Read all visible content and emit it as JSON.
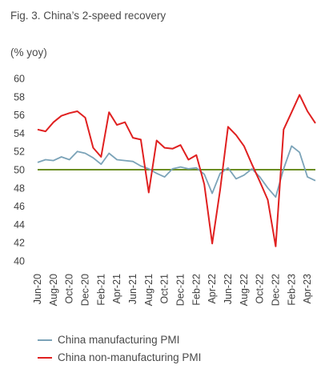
{
  "chart_data": {
    "type": "line",
    "title": "Fig. 3. China’s 2-speed recovery",
    "ylabel": "(% yoy)",
    "xlabel": "",
    "ylim": [
      40,
      60
    ],
    "yticks": [
      "40",
      "42",
      "44",
      "46",
      "48",
      "50",
      "52",
      "54",
      "56",
      "58",
      "60"
    ],
    "grid": false,
    "legend_position": "bottom-left",
    "reference_line": {
      "value": 50,
      "color": "#6b8e23"
    },
    "x": [
      "Jun-20",
      "Jul-20",
      "Aug-20",
      "Sep-20",
      "Oct-20",
      "Nov-20",
      "Dec-20",
      "Jan-21",
      "Feb-21",
      "Mar-21",
      "Apr-21",
      "May-21",
      "Jun-21",
      "Jul-21",
      "Aug-21",
      "Sep-21",
      "Oct-21",
      "Nov-21",
      "Dec-21",
      "Jan-22",
      "Feb-22",
      "Mar-22",
      "Apr-22",
      "May-22",
      "Jun-22",
      "Jul-22",
      "Aug-22",
      "Sep-22",
      "Oct-22",
      "Nov-22",
      "Dec-22",
      "Jan-23",
      "Feb-23",
      "Mar-23",
      "Apr-23",
      "May-23"
    ],
    "x_tick_labels": [
      "Jun-20",
      "Aug-20",
      "Oct-20",
      "Dec-20",
      "Feb-21",
      "Apr-21",
      "Jun-21",
      "Aug-21",
      "Oct-21",
      "Dec-21",
      "Feb-22",
      "Apr-22",
      "Jun-22",
      "Aug-22",
      "Oct-22",
      "Dec-22",
      "Feb-23",
      "Apr-23"
    ],
    "series": [
      {
        "name": "China manufacturing PMI",
        "color": "#7ba3b8",
        "values": [
          50.8,
          51.1,
          51.0,
          51.4,
          51.1,
          52.0,
          51.8,
          51.3,
          50.6,
          51.8,
          51.1,
          51.0,
          50.9,
          50.4,
          50.1,
          49.6,
          49.2,
          50.1,
          50.3,
          50.1,
          50.2,
          49.5,
          47.4,
          49.6,
          50.2,
          49.0,
          49.4,
          50.1,
          49.2,
          48.0,
          47.0,
          50.1,
          52.6,
          51.9,
          49.2,
          48.8
        ]
      },
      {
        "name": "China non-manufacturing PMI",
        "color": "#e02020",
        "values": [
          54.4,
          54.2,
          55.2,
          55.9,
          56.2,
          56.4,
          55.7,
          52.4,
          51.4,
          56.3,
          54.9,
          55.2,
          53.5,
          53.3,
          47.5,
          53.2,
          52.4,
          52.3,
          52.7,
          51.1,
          51.6,
          48.4,
          41.9,
          47.8,
          54.7,
          53.8,
          52.6,
          50.6,
          48.7,
          46.7,
          41.6,
          54.4,
          56.3,
          58.2,
          56.4,
          55.1
        ]
      }
    ]
  }
}
